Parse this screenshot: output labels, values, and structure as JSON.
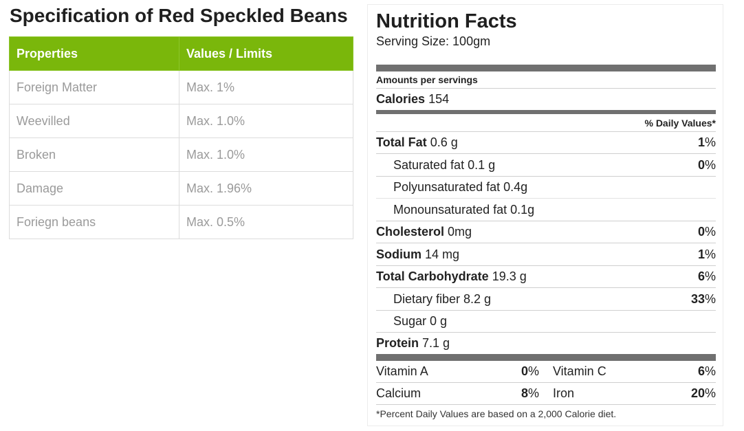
{
  "spec": {
    "title": "Specification of Red Speckled Beans",
    "headers": [
      "Properties",
      "Values / Limits"
    ],
    "rows": [
      {
        "property": "Foreign Matter",
        "value": "Max. 1%"
      },
      {
        "property": "Weevilled",
        "value": "Max. 1.0%"
      },
      {
        "property": "Broken",
        "value": "Max. 1.0%"
      },
      {
        "property": "Damage",
        "value": "Max. 1.96%"
      },
      {
        "property": "Foriegn beans",
        "value": "Max. 0.5%"
      }
    ],
    "colors": {
      "header_bg": "#7ab70b",
      "header_text": "#ffffff",
      "cell_text": "#9a9a9a"
    }
  },
  "nutrition": {
    "title": "Nutrition Facts",
    "serving": "Serving Size: 100gm",
    "amounts_label": "Amounts per servings",
    "calories_label": "Calories",
    "calories_value": "154",
    "daily_values_label": "% Daily Values*",
    "total_fat": {
      "label": "Total Fat",
      "amount": "0.6 g",
      "pct": "1",
      "pct_sign": "%"
    },
    "saturated_fat": {
      "label": "Saturated fat 0.1 g",
      "pct": "0",
      "pct_sign": "%"
    },
    "polyunsaturated_fat": {
      "label": "Polyunsaturated fat 0.4g"
    },
    "monounsaturated_fat": {
      "label": "Monounsaturated fat 0.1g"
    },
    "cholesterol": {
      "label": "Cholesterol",
      "amount": "0mg",
      "pct": "0",
      "pct_sign": "%"
    },
    "sodium": {
      "label": "Sodium",
      "amount": "14 mg",
      "pct": "1",
      "pct_sign": "%"
    },
    "total_carbohydrate": {
      "label": "Total Carbohydrate",
      "amount": "19.3 g",
      "pct": "6",
      "pct_sign": "%"
    },
    "dietary_fiber": {
      "label": "Dietary fiber 8.2 g",
      "pct": "33",
      "pct_sign": "%"
    },
    "sugar": {
      "label": "Sugar 0 g"
    },
    "protein": {
      "label": "Protein",
      "amount": "7.1 g"
    },
    "vitamins": [
      [
        {
          "label": "Vitamin A",
          "pct": "0",
          "pct_sign": "%"
        },
        {
          "label": "Vitamin C",
          "pct": "6",
          "pct_sign": "%"
        }
      ],
      [
        {
          "label": "Calcium",
          "pct": "8",
          "pct_sign": "%"
        },
        {
          "label": "Iron",
          "pct": "20",
          "pct_sign": "%"
        }
      ]
    ],
    "footnote": "*Percent Daily Values are based on a 2,000 Calorie diet."
  }
}
